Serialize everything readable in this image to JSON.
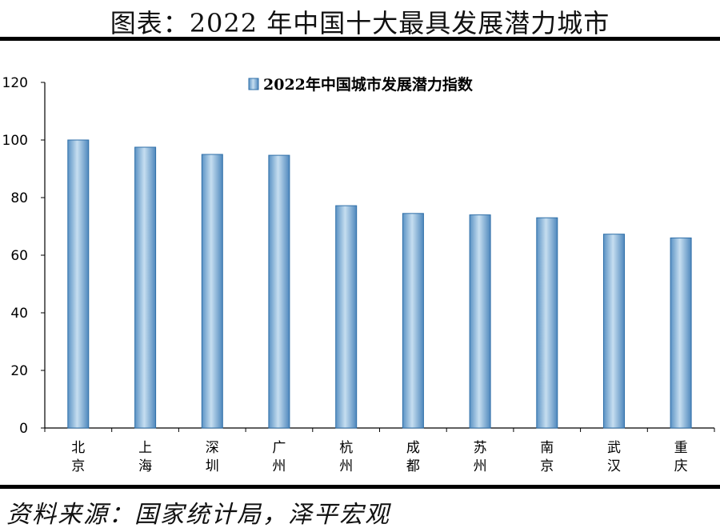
{
  "header": {
    "title": "图表：2022 年中国十大最具发展潜力城市"
  },
  "footer": {
    "source": "资料来源：国家统计局，泽平宏观"
  },
  "chart_data": {
    "type": "bar",
    "categories": [
      "北京",
      "上海",
      "深圳",
      "广州",
      "杭州",
      "成都",
      "苏州",
      "南京",
      "武汉",
      "重庆"
    ],
    "category_lines": [
      [
        "北",
        "京"
      ],
      [
        "上",
        "海"
      ],
      [
        "深",
        "圳"
      ],
      [
        "广",
        "州"
      ],
      [
        "杭",
        "州"
      ],
      [
        "成",
        "都"
      ],
      [
        "苏",
        "州"
      ],
      [
        "南",
        "京"
      ],
      [
        "武",
        "汉"
      ],
      [
        "重",
        "庆"
      ]
    ],
    "series": [
      {
        "name": "2022年中国城市发展潜力指数",
        "values": [
          100,
          97.5,
          95,
          94.7,
          77.2,
          74.5,
          74,
          73,
          67.3,
          66
        ]
      }
    ],
    "ylim": [
      0,
      120
    ],
    "yticks": [
      "0",
      "20",
      "40",
      "60",
      "80",
      "100",
      "120"
    ],
    "legend_position": "top",
    "grid": false,
    "colors": {
      "bar_edge": "#2f6fa8",
      "bar_light": "#b9d4ea",
      "bar_mid": "#6b9fcc",
      "axis": "#000000"
    }
  }
}
